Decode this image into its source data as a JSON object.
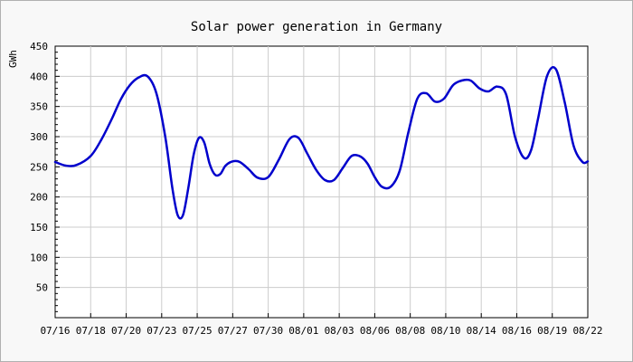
{
  "chart_data": {
    "type": "line",
    "title": "Solar power generation in Germany",
    "xlabel": "",
    "ylabel": "GWh",
    "ylim": [
      0,
      450
    ],
    "yticks": [
      50,
      100,
      150,
      200,
      250,
      300,
      350,
      400,
      450
    ],
    "xticks": [
      "07/16",
      "07/18",
      "07/20",
      "07/23",
      "07/25",
      "07/27",
      "07/30",
      "08/01",
      "08/03",
      "08/06",
      "08/08",
      "08/10",
      "08/14",
      "08/16",
      "08/19",
      "08/22"
    ],
    "grid": true,
    "line_color": "#0000cc",
    "series": [
      {
        "x": [
          0,
          0.3,
          0.6,
          1.0,
          1.3,
          1.6,
          1.85,
          2.1,
          2.35,
          2.6,
          2.85,
          3.1,
          3.3,
          3.45,
          3.6,
          3.75,
          3.9,
          4.05,
          4.2,
          4.35,
          4.5,
          4.65,
          4.8,
          5.0,
          5.2,
          5.45,
          5.7,
          6.0,
          6.3,
          6.6,
          6.85,
          7.1,
          7.35,
          7.6,
          7.85,
          8.1,
          8.35,
          8.6,
          8.8,
          9.0,
          9.2,
          9.45,
          9.7,
          9.95,
          10.2,
          10.45,
          10.7,
          10.95,
          11.2,
          11.45,
          11.7,
          11.95,
          12.2,
          12.45,
          12.7,
          12.95,
          13.2,
          13.4,
          13.6,
          13.85,
          14.1,
          14.35,
          14.6,
          14.85,
          15.0
        ],
        "values": [
          258,
          252,
          253,
          268,
          295,
          330,
          362,
          385,
          398,
          400,
          372,
          300,
          215,
          170,
          170,
          215,
          270,
          298,
          290,
          255,
          237,
          238,
          252,
          259,
          258,
          246,
          232,
          233,
          262,
          296,
          298,
          272,
          245,
          228,
          228,
          248,
          268,
          267,
          255,
          233,
          217,
          217,
          243,
          308,
          363,
          372,
          358,
          363,
          385,
          393,
          393,
          380,
          375,
          383,
          370,
          300,
          265,
          277,
          330,
          400,
          412,
          357,
          285,
          258,
          259
        ]
      }
    ]
  }
}
